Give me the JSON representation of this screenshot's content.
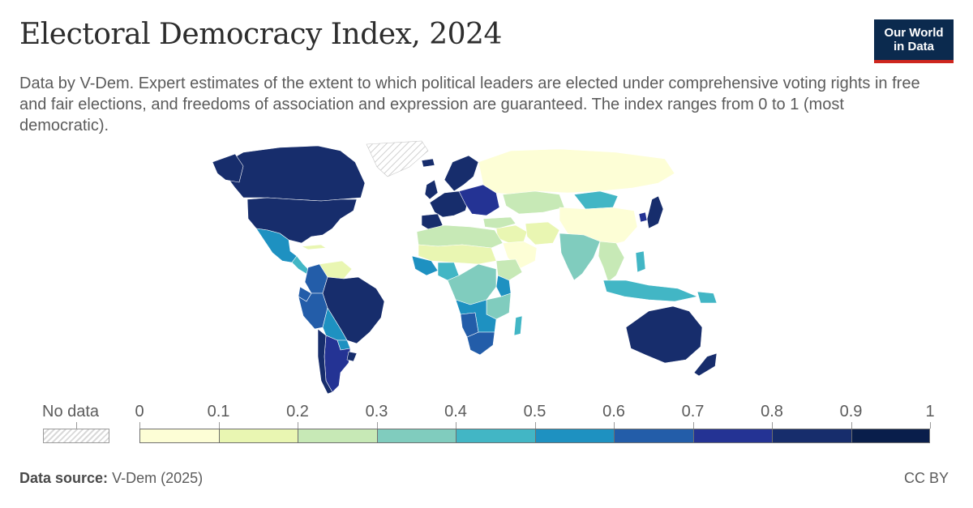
{
  "header": {
    "title": "Electoral Democracy Index, 2024",
    "subtitle": "Data by V-Dem. Expert estimates of the extent to which political leaders are elected under comprehensive voting rights in free and fair elections, and freedoms of association and expression are guaranteed. The index ranges from 0 to 1 (most democratic)."
  },
  "logo": {
    "line1": "Our World",
    "line2": "in Data",
    "background": "#0b2a4e",
    "accent": "#ce261e"
  },
  "legend": {
    "no_data_label": "No data",
    "ticks": [
      "0",
      "0.1",
      "0.2",
      "0.3",
      "0.4",
      "0.5",
      "0.6",
      "0.7",
      "0.8",
      "0.9",
      "1"
    ],
    "bin_colors": [
      "#fdfed6",
      "#e9f6b2",
      "#c7e9b6",
      "#80ccbe",
      "#42b6c5",
      "#1e91c1",
      "#235da9",
      "#243394",
      "#172d6c",
      "#091e4b"
    ]
  },
  "map": {
    "regions": [
      {
        "name": "Greenland",
        "value": null
      },
      {
        "name": "Canada",
        "value": 0.86
      },
      {
        "name": "United States",
        "value": 0.82
      },
      {
        "name": "Alaska",
        "value": 0.82
      },
      {
        "name": "Mexico",
        "value": 0.55
      },
      {
        "name": "Central America",
        "value": 0.45
      },
      {
        "name": "Cuba",
        "value": 0.12
      },
      {
        "name": "Venezuela",
        "value": 0.15
      },
      {
        "name": "Colombia",
        "value": 0.68
      },
      {
        "name": "Peru",
        "value": 0.67
      },
      {
        "name": "Ecuador",
        "value": 0.62
      },
      {
        "name": "Brazil",
        "value": 0.82
      },
      {
        "name": "Bolivia",
        "value": 0.58
      },
      {
        "name": "Paraguay",
        "value": 0.55
      },
      {
        "name": "Argentina",
        "value": 0.78
      },
      {
        "name": "Chile",
        "value": 0.85
      },
      {
        "name": "Uruguay",
        "value": 0.88
      },
      {
        "name": "Iceland",
        "value": 0.85
      },
      {
        "name": "Scandinavia",
        "value": 0.88
      },
      {
        "name": "Western Europe",
        "value": 0.86
      },
      {
        "name": "Iberia",
        "value": 0.84
      },
      {
        "name": "Eastern Europe",
        "value": 0.72
      },
      {
        "name": "United Kingdom",
        "value": 0.84
      },
      {
        "name": "Russia",
        "value": 0.08
      },
      {
        "name": "Kazakhstan",
        "value": 0.22
      },
      {
        "name": "Mongolia",
        "value": 0.48
      },
      {
        "name": "China",
        "value": 0.05
      },
      {
        "name": "Turkey",
        "value": 0.25
      },
      {
        "name": "Middle East",
        "value": 0.12
      },
      {
        "name": "Arabian Peninsula",
        "value": 0.03
      },
      {
        "name": "Iran",
        "value": 0.1
      },
      {
        "name": "India",
        "value": 0.35
      },
      {
        "name": "Southeast Asia",
        "value": 0.25
      },
      {
        "name": "Japan",
        "value": 0.82
      },
      {
        "name": "South Korea",
        "value": 0.75
      },
      {
        "name": "Philippines",
        "value": 0.45
      },
      {
        "name": "Indonesia",
        "value": 0.42
      },
      {
        "name": "Papua New Guinea",
        "value": 0.4
      },
      {
        "name": "Australia",
        "value": 0.84
      },
      {
        "name": "New Zealand",
        "value": 0.86
      },
      {
        "name": "North Africa",
        "value": 0.2
      },
      {
        "name": "Sahel",
        "value": 0.15
      },
      {
        "name": "West Africa",
        "value": 0.5
      },
      {
        "name": "Nigeria",
        "value": 0.42
      },
      {
        "name": "Ethiopia",
        "value": 0.22
      },
      {
        "name": "Kenya",
        "value": 0.5
      },
      {
        "name": "Central Africa",
        "value": 0.3
      },
      {
        "name": "East Africa",
        "value": 0.35
      },
      {
        "name": "Southern Africa",
        "value": 0.55
      },
      {
        "name": "South Africa",
        "value": 0.62
      },
      {
        "name": "Madagascar",
        "value": 0.45
      },
      {
        "name": "Namibia",
        "value": 0.65
      }
    ]
  },
  "footer": {
    "source_label": "Data source:",
    "source_value": "V-Dem (2025)",
    "license": "CC BY"
  }
}
